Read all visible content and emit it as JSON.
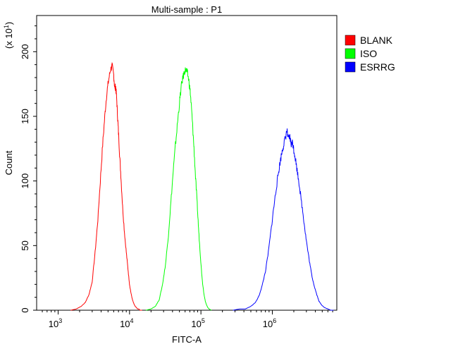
{
  "chart_data": {
    "type": "line",
    "title": "Multi-sample : P1",
    "xlabel": "FITC-A",
    "ylabel": "Count",
    "y_multiplier_label": "(x 10¹)",
    "x_scale": "log",
    "xlim": [
      500,
      8000000
    ],
    "ylim": [
      0,
      228
    ],
    "x_ticks": [
      {
        "value": 1000,
        "base": "10",
        "exp": "3"
      },
      {
        "value": 10000,
        "base": "10",
        "exp": "4"
      },
      {
        "value": 100000,
        "base": "10",
        "exp": "5"
      },
      {
        "value": 1000000,
        "base": "10",
        "exp": "6"
      }
    ],
    "y_ticks": [
      {
        "value": 0,
        "label": "0"
      },
      {
        "value": 50,
        "label": "50"
      },
      {
        "value": 100,
        "label": "100"
      },
      {
        "value": 150,
        "label": "150"
      },
      {
        "value": 200,
        "label": "200"
      }
    ],
    "grid": false,
    "legend_position": "right",
    "series": [
      {
        "name": "BLANK",
        "color": "#ff0000",
        "x": [
          1500,
          1800,
          2100,
          2400,
          2700,
          3000,
          3300,
          3600,
          3900,
          4200,
          4500,
          4800,
          5100,
          5400,
          5700,
          6000,
          6200,
          6400,
          6600,
          6800,
          7000,
          7300,
          7600,
          8000,
          8500,
          9000,
          9500,
          10000,
          10500,
          11000,
          11500,
          12000,
          12500,
          13000,
          13500,
          14000,
          15000
        ],
        "y": [
          0,
          1,
          3,
          6,
          12,
          22,
          45,
          70,
          100,
          128,
          150,
          168,
          178,
          186,
          189,
          182,
          172,
          173,
          164,
          150,
          138,
          118,
          102,
          80,
          60,
          45,
          32,
          20,
          13,
          8,
          5,
          3,
          2,
          1,
          1,
          0,
          0
        ]
      },
      {
        "name": "ISO",
        "color": "#00ff00",
        "x": [
          17000,
          20000,
          23000,
          26000,
          29000,
          32000,
          35000,
          38000,
          41000,
          44000,
          47000,
          50000,
          53000,
          56000,
          59000,
          62000,
          65000,
          68000,
          71000,
          74000,
          77000,
          80000,
          84000,
          88000,
          92000,
          96000,
          100000,
          105000,
          110000,
          115000,
          120000,
          125000,
          130000,
          140000
        ],
        "y": [
          0,
          1,
          3,
          8,
          20,
          36,
          58,
          84,
          108,
          128,
          145,
          160,
          173,
          180,
          185,
          186,
          183,
          177,
          168,
          155,
          140,
          125,
          103,
          85,
          66,
          50,
          36,
          22,
          13,
          7,
          4,
          2,
          1,
          0
        ]
      },
      {
        "name": "ESRRG",
        "color": "#0000ff",
        "x": [
          280000,
          350000,
          420000,
          500000,
          580000,
          650000,
          720000,
          800000,
          880000,
          960000,
          1040000,
          1120000,
          1200000,
          1280000,
          1360000,
          1440000,
          1520000,
          1600000,
          1680000,
          1760000,
          1840000,
          1920000,
          2000000,
          2100000,
          2200000,
          2350000,
          2500000,
          2700000,
          2900000,
          3100000,
          3350000,
          3600000,
          3900000,
          4200000,
          4500000,
          4900000,
          5400000,
          6000000,
          6600000,
          7200000
        ],
        "y": [
          0,
          1,
          1,
          3,
          6,
          11,
          19,
          30,
          45,
          62,
          78,
          92,
          104,
          114,
          122,
          128,
          133,
          139,
          132,
          134,
          128,
          130,
          124,
          118,
          110,
          100,
          88,
          74,
          60,
          48,
          36,
          26,
          18,
          12,
          7,
          4,
          2,
          1,
          0,
          0
        ]
      }
    ]
  }
}
